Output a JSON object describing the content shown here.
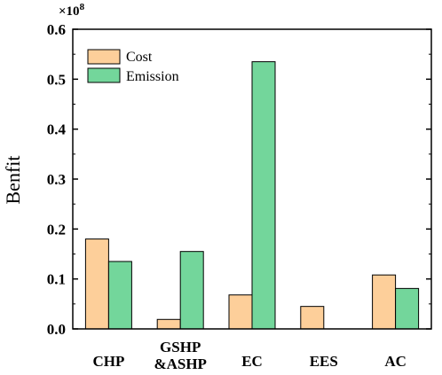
{
  "chart_data": {
    "type": "bar",
    "categories": [
      "CHP",
      "GSHP\n&ASHP",
      "EC",
      "EES",
      "AC"
    ],
    "series": [
      {
        "name": "Cost",
        "color": "#FDCF9A",
        "values": [
          0.18,
          0.019,
          0.068,
          0.045,
          0.108
        ]
      },
      {
        "name": "Emission",
        "color": "#73D69B",
        "values": [
          0.135,
          0.155,
          0.535,
          0.0,
          0.081
        ]
      }
    ],
    "ylabel": "Benfit",
    "xlabel": "",
    "y_multiplier": "×10",
    "y_multiplier_exp": "8",
    "ylim": [
      0,
      0.6
    ],
    "yticks": [
      "0.0",
      "0.1",
      "0.2",
      "0.3",
      "0.4",
      "0.5",
      "0.6"
    ],
    "legend_position": "top-left",
    "grid": false
  }
}
